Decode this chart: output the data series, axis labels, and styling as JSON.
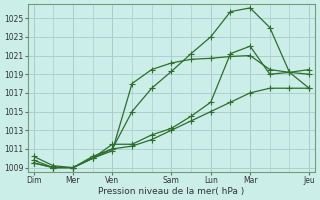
{
  "xlabel": "Pression niveau de la mer( hPa )",
  "background_color": "#cceee8",
  "grid_color": "#aacccc",
  "line_color": "#2d6e2d",
  "ylim": [
    1008.5,
    1026.5
  ],
  "yticks": [
    1009,
    1011,
    1013,
    1015,
    1017,
    1019,
    1021,
    1023,
    1025
  ],
  "xlim": [
    -0.3,
    14.3
  ],
  "xtick_positions": [
    0,
    2,
    4,
    7,
    9,
    11,
    14
  ],
  "xtick_labels": [
    "Dim",
    "Mer",
    "Ven",
    "Sam",
    "Lun",
    "Mar",
    "Jeu"
  ],
  "vline_positions": [
    0,
    2,
    4,
    7,
    9,
    11,
    14
  ],
  "series1_x": [
    0,
    1,
    2,
    3,
    4,
    5,
    6,
    7,
    8,
    9,
    10,
    11,
    12,
    13,
    14
  ],
  "series1_y": [
    1010.2,
    1009.2,
    1009.0,
    1010.0,
    1010.8,
    1018.0,
    1019.5,
    1020.2,
    1020.6,
    1020.7,
    1020.9,
    1021.0,
    1019.5,
    1019.2,
    1019.0
  ],
  "series2_x": [
    0,
    1,
    2,
    3,
    4,
    5,
    6,
    7,
    8,
    9,
    10,
    11,
    12,
    13,
    14
  ],
  "series2_y": [
    1009.5,
    1009.0,
    1009.0,
    1010.0,
    1011.0,
    1011.3,
    1012.0,
    1013.0,
    1014.0,
    1015.0,
    1016.0,
    1017.0,
    1017.5,
    1017.5,
    1017.5
  ],
  "series3_x": [
    0,
    1,
    2,
    3,
    4,
    5,
    6,
    7,
    8,
    9,
    10,
    11,
    12,
    13,
    14
  ],
  "series3_y": [
    1009.5,
    1009.0,
    1009.0,
    1010.0,
    1011.5,
    1011.5,
    1012.5,
    1013.2,
    1014.5,
    1016.0,
    1021.2,
    1022.0,
    1019.0,
    1019.2,
    1017.5
  ],
  "series4_x": [
    0,
    1,
    2,
    3,
    4,
    5,
    6,
    7,
    8,
    9,
    10,
    11,
    12,
    13,
    14
  ],
  "series4_y": [
    1009.8,
    1009.0,
    1009.0,
    1010.2,
    1011.0,
    1015.0,
    1017.5,
    1019.3,
    1021.2,
    1023.0,
    1025.7,
    1026.1,
    1024.0,
    1019.2,
    1019.5
  ]
}
